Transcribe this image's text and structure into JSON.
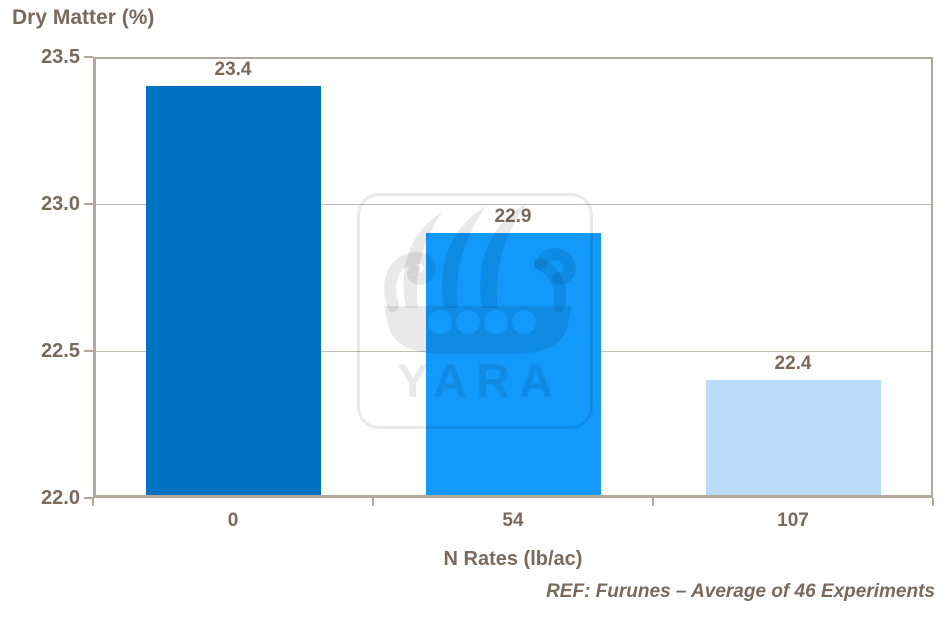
{
  "colors": {
    "text": "#796A5B",
    "axis": "#B3A89D",
    "grid": "#C6BCB1",
    "background": "#FFFFFF"
  },
  "watermark": {
    "symbol": "viking-ship",
    "text": "YARA"
  },
  "caption": "REF: Furunes – Average of 46 Experiments",
  "chart_data": {
    "type": "bar",
    "title": "Dry Matter (%)",
    "xlabel": "N Rates (lb/ac)",
    "ylabel": "Dry Matter (%)",
    "categories": [
      "0",
      "54",
      "107"
    ],
    "values": [
      23.4,
      22.9,
      22.4
    ],
    "value_labels": [
      "23.4",
      "22.9",
      "22.4"
    ],
    "bar_colors": [
      "#0070C0",
      "#1299FA",
      "#B9DCFB"
    ],
    "ylim": [
      22.0,
      23.5
    ],
    "yticks": [
      "22.0",
      "22.5",
      "23.0",
      "23.5"
    ],
    "grid": "horizontal-inner",
    "legend": "none"
  }
}
